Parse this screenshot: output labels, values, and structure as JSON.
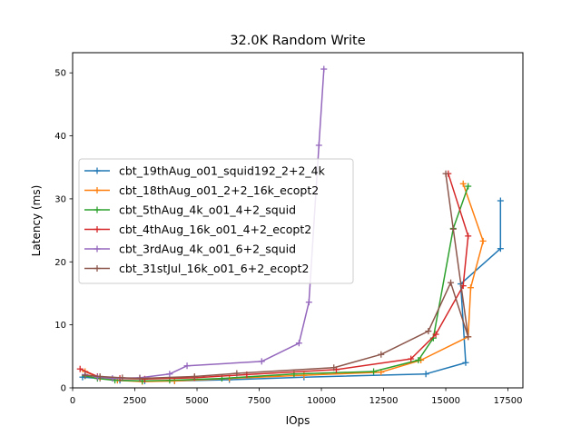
{
  "chart_data": {
    "type": "line",
    "title": "32.0K  Random Write",
    "xlabel": "IOps",
    "ylabel": "Latency (ms)",
    "xlim": [
      0,
      18100
    ],
    "ylim": [
      0,
      53.2
    ],
    "xticks": [
      0,
      2500,
      5000,
      7500,
      10000,
      12500,
      15000,
      17500
    ],
    "yticks": [
      0,
      10,
      20,
      30,
      40,
      50
    ],
    "grid": false,
    "legend_position": "center-left",
    "series": [
      {
        "name": "cbt_19thAug_o01_squid192_2+2_4k",
        "color": "#1f77b4",
        "points": [
          [
            400,
            1.7
          ],
          [
            1100,
            1.5
          ],
          [
            1900,
            1.2
          ],
          [
            2900,
            1.1
          ],
          [
            4100,
            1.1
          ],
          [
            6300,
            1.3
          ],
          [
            9300,
            1.7
          ],
          [
            14200,
            2.2
          ],
          [
            15800,
            4.0
          ],
          [
            15600,
            16.5
          ],
          [
            17200,
            22.1
          ],
          [
            17200,
            29.7
          ]
        ]
      },
      {
        "name": "cbt_18thAug_o01_2+2_16k_ecopt2",
        "color": "#ff7f0e",
        "points": [
          [
            500,
            2.6
          ],
          [
            1100,
            1.6
          ],
          [
            1800,
            1.2
          ],
          [
            2800,
            1.0
          ],
          [
            4100,
            1.1
          ],
          [
            6300,
            1.5
          ],
          [
            9300,
            2.0
          ],
          [
            12400,
            2.5
          ],
          [
            14000,
            4.4
          ],
          [
            15900,
            8.1
          ],
          [
            16000,
            15.9
          ],
          [
            16500,
            23.3
          ],
          [
            15700,
            32.4
          ]
        ]
      },
      {
        "name": "cbt_5thAug_4k_o01_4+2_squid",
        "color": "#2ca02c",
        "points": [
          [
            500,
            1.9
          ],
          [
            1000,
            1.5
          ],
          [
            1700,
            1.2
          ],
          [
            2800,
            1.1
          ],
          [
            3900,
            1.2
          ],
          [
            6000,
            1.5
          ],
          [
            8900,
            2.2
          ],
          [
            12100,
            2.6
          ],
          [
            13900,
            4.4
          ],
          [
            14500,
            7.9
          ],
          [
            15300,
            25.3
          ],
          [
            15900,
            32.0
          ]
        ]
      },
      {
        "name": "cbt_4thAug_16k_o01_4+2_ecopt2",
        "color": "#d62728",
        "points": [
          [
            300,
            3.0
          ],
          [
            1000,
            1.8
          ],
          [
            1900,
            1.5
          ],
          [
            2900,
            1.4
          ],
          [
            4900,
            1.6
          ],
          [
            7000,
            2.1
          ],
          [
            10600,
            2.9
          ],
          [
            13600,
            4.6
          ],
          [
            14600,
            8.5
          ],
          [
            15700,
            16.2
          ],
          [
            15900,
            24.1
          ],
          [
            15100,
            34.0
          ]
        ]
      },
      {
        "name": "cbt_3rdAug_4k_o01_6+2_squid",
        "color": "#9467bd",
        "points": [
          [
            500,
            2.1
          ],
          [
            1000,
            1.7
          ],
          [
            1600,
            1.5
          ],
          [
            2700,
            1.6
          ],
          [
            3900,
            2.2
          ],
          [
            4600,
            3.5
          ],
          [
            7600,
            4.2
          ],
          [
            9100,
            7.1
          ],
          [
            9500,
            13.6
          ],
          [
            9900,
            38.5
          ],
          [
            10100,
            50.6
          ]
        ]
      },
      {
        "name": "cbt_31stJul_16k_o01_6+2_ecopt2",
        "color": "#8c564b",
        "points": [
          [
            500,
            2.0
          ],
          [
            1100,
            1.8
          ],
          [
            2000,
            1.6
          ],
          [
            2700,
            1.5
          ],
          [
            4900,
            1.8
          ],
          [
            6600,
            2.3
          ],
          [
            10500,
            3.2
          ],
          [
            12400,
            5.3
          ],
          [
            14300,
            9.0
          ],
          [
            15200,
            16.7
          ],
          [
            15900,
            8.1
          ],
          [
            15300,
            25.2
          ],
          [
            15000,
            34.0
          ]
        ]
      }
    ]
  }
}
